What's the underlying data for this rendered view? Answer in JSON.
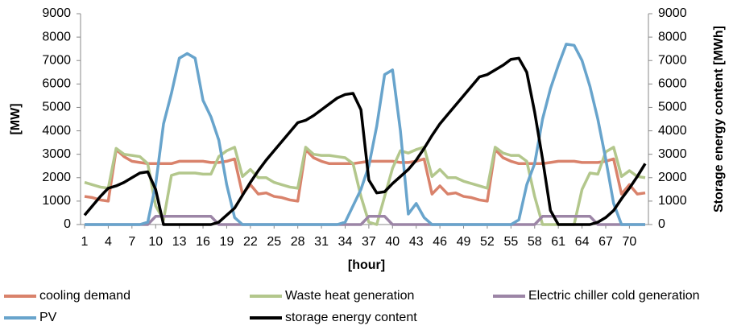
{
  "chart_data": {
    "type": "line",
    "y_label": "[MW]",
    "y2_label": "Storage energy content [MWh]",
    "x_label": "[hour]",
    "x": [
      1,
      2,
      3,
      4,
      5,
      6,
      7,
      8,
      9,
      10,
      11,
      12,
      13,
      14,
      15,
      16,
      17,
      18,
      19,
      20,
      21,
      22,
      23,
      24,
      25,
      26,
      27,
      28,
      29,
      30,
      31,
      32,
      33,
      34,
      35,
      36,
      37,
      38,
      39,
      40,
      41,
      42,
      43,
      44,
      45,
      46,
      47,
      48,
      49,
      50,
      51,
      52,
      53,
      54,
      55,
      56,
      57,
      58,
      59,
      60,
      61,
      62,
      63,
      64,
      65,
      66,
      67,
      68,
      69,
      70,
      71,
      72
    ],
    "xlim": [
      1,
      72
    ],
    "xticks": [
      1,
      4,
      7,
      10,
      13,
      16,
      19,
      22,
      25,
      28,
      31,
      34,
      37,
      40,
      43,
      46,
      49,
      52,
      55,
      58,
      61,
      64,
      67,
      70
    ],
    "ylim": [
      0,
      9000
    ],
    "yticks": [
      0,
      1000,
      2000,
      3000,
      4000,
      5000,
      6000,
      7000,
      8000,
      9000
    ],
    "y2lim": [
      0,
      9000
    ],
    "y2ticks": [
      0,
      1000,
      2000,
      3000,
      4000,
      5000,
      6000,
      7000,
      8000,
      9000
    ],
    "grid": false,
    "legend": "bottom",
    "series": [
      {
        "name": "cooling demand",
        "color": "#d9826b",
        "values": [
          1200,
          1150,
          1050,
          1000,
          3200,
          2900,
          2700,
          2650,
          2600,
          2600,
          2600,
          2600,
          2700,
          2700,
          2700,
          2700,
          2650,
          2650,
          2700,
          2800,
          1300,
          1700,
          1300,
          1350,
          1200,
          1150,
          1050,
          1000,
          3200,
          2850,
          2700,
          2600,
          2600,
          2600,
          2600,
          2650,
          2700,
          2700,
          2700,
          2700,
          2650,
          2650,
          2700,
          2800,
          1300,
          1650,
          1300,
          1350,
          1200,
          1150,
          1050,
          1000,
          3200,
          2850,
          2700,
          2600,
          2600,
          2600,
          2600,
          2650,
          2700,
          2700,
          2700,
          2650,
          2650,
          2650,
          2700,
          2800,
          1300,
          1700,
          1300,
          1350
        ]
      },
      {
        "name": "Waste heat generation",
        "color": "#b3c78c",
        "values": [
          1800,
          1700,
          1600,
          1550,
          3250,
          3000,
          2950,
          2900,
          2600,
          800,
          200,
          2100,
          2200,
          2200,
          2200,
          2150,
          2150,
          2900,
          3150,
          3300,
          2050,
          2350,
          2000,
          2000,
          1800,
          1700,
          1600,
          1550,
          3300,
          3000,
          2950,
          2950,
          2900,
          2850,
          2600,
          1200,
          100,
          0,
          1200,
          2400,
          3150,
          3050,
          3200,
          3300,
          2050,
          2350,
          2000,
          2000,
          1850,
          1750,
          1650,
          1550,
          3300,
          3050,
          2950,
          2950,
          2700,
          1200,
          0,
          0,
          0,
          0,
          0,
          1500,
          2200,
          2150,
          3100,
          3300,
          2050,
          2300,
          2050,
          2000
        ]
      },
      {
        "name": "Electric chiller cold generation",
        "color": "#9c85a6",
        "values": [
          0,
          0,
          0,
          0,
          0,
          0,
          0,
          0,
          0,
          350,
          350,
          350,
          350,
          350,
          350,
          350,
          350,
          0,
          0,
          0,
          0,
          0,
          0,
          0,
          0,
          0,
          0,
          0,
          0,
          0,
          0,
          0,
          0,
          0,
          0,
          0,
          350,
          350,
          350,
          0,
          0,
          0,
          0,
          0,
          0,
          0,
          0,
          0,
          0,
          0,
          0,
          0,
          0,
          0,
          0,
          0,
          0,
          0,
          350,
          350,
          350,
          350,
          350,
          350,
          350,
          0,
          0,
          0,
          0,
          0,
          0,
          0
        ]
      },
      {
        "name": "PV",
        "color": "#68a4cc",
        "values": [
          0,
          0,
          0,
          0,
          0,
          0,
          0,
          0,
          100,
          1700,
          4300,
          5600,
          7100,
          7300,
          7100,
          5300,
          4600,
          3600,
          1700,
          300,
          0,
          0,
          0,
          0,
          0,
          0,
          0,
          0,
          0,
          0,
          0,
          0,
          0,
          100,
          800,
          1500,
          2500,
          4200,
          6400,
          6600,
          4000,
          450,
          900,
          300,
          0,
          0,
          0,
          0,
          0,
          0,
          0,
          0,
          0,
          0,
          0,
          200,
          1700,
          2600,
          4500,
          5800,
          6800,
          7700,
          7650,
          7000,
          5900,
          4500,
          2800,
          900,
          0,
          0,
          0,
          0
        ]
      },
      {
        "name": "storage energy content",
        "color": "#000000",
        "axis": "y2",
        "values": [
          400,
          800,
          1200,
          1550,
          1650,
          1800,
          2000,
          2200,
          2250,
          1500,
          0,
          0,
          0,
          0,
          0,
          0,
          0,
          100,
          400,
          700,
          1250,
          1800,
          2300,
          2750,
          3150,
          3550,
          3950,
          4350,
          4450,
          4650,
          4900,
          5150,
          5400,
          5550,
          5600,
          4900,
          1900,
          1350,
          1400,
          1750,
          2050,
          2350,
          2750,
          3250,
          3800,
          4300,
          4700,
          5100,
          5500,
          5900,
          6300,
          6400,
          6600,
          6800,
          7050,
          7100,
          6500,
          4800,
          2800,
          600,
          0,
          0,
          0,
          0,
          0,
          100,
          300,
          600,
          1100,
          1550,
          2050,
          2600
        ]
      }
    ]
  }
}
